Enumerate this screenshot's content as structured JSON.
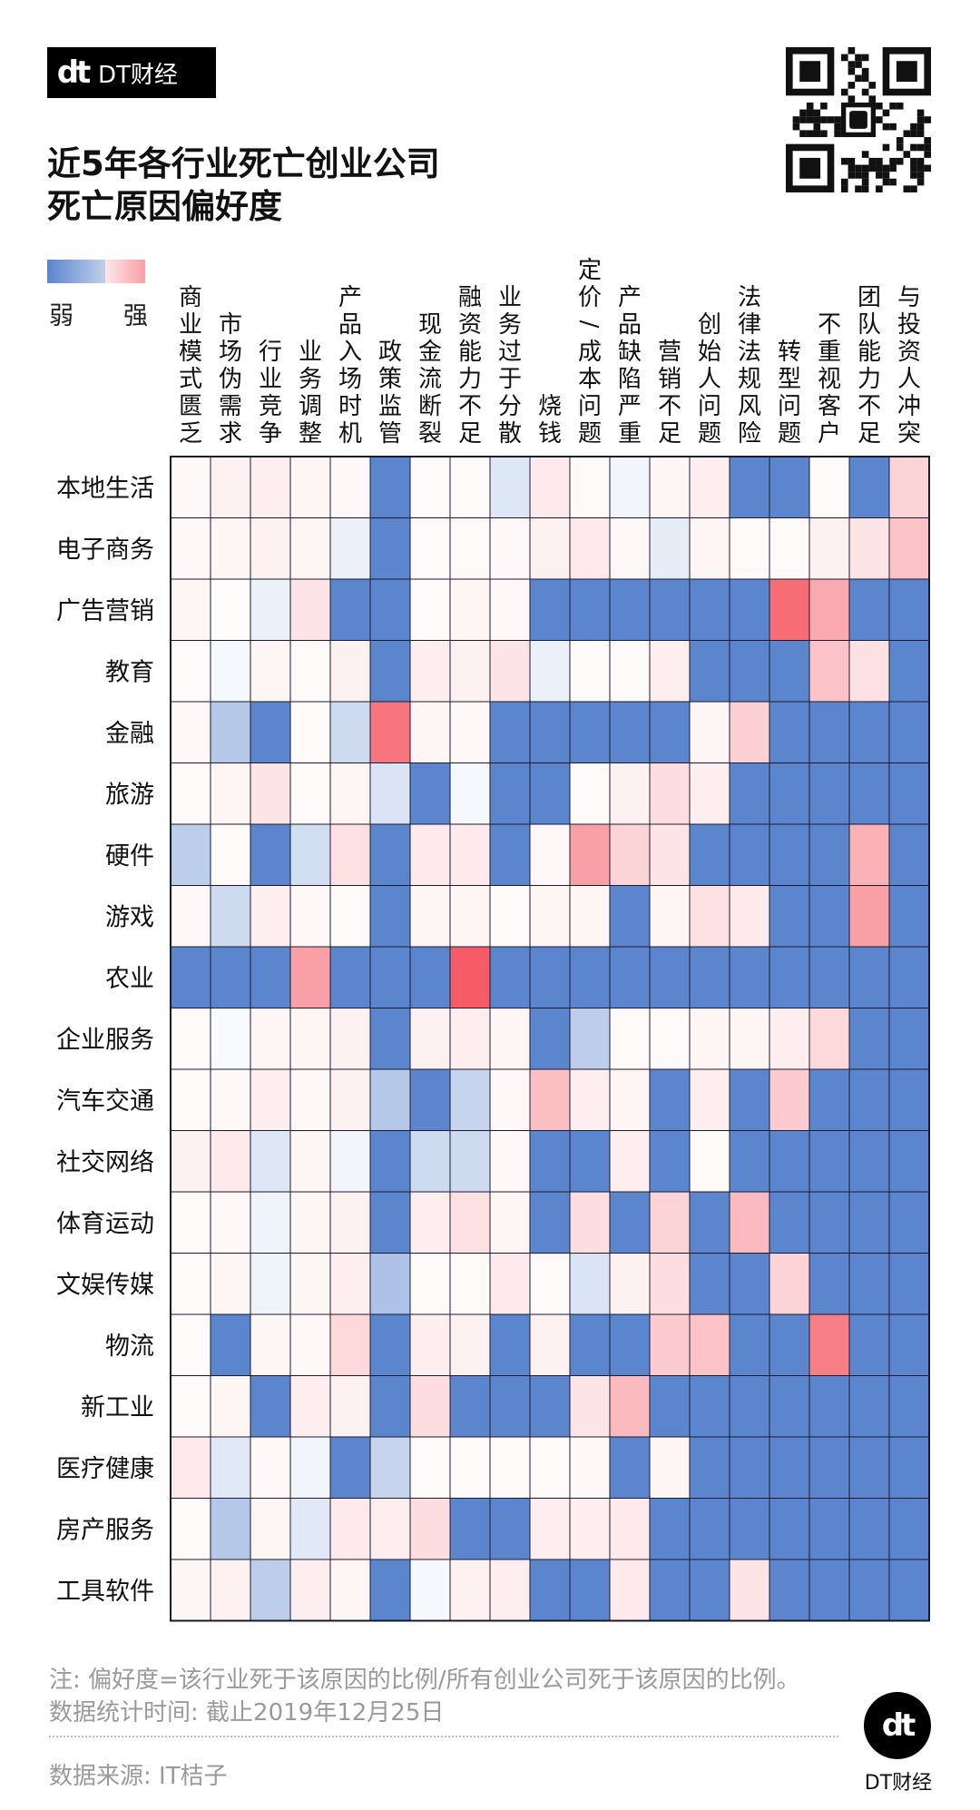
{
  "brand": {
    "logo_mark": "dt",
    "name": "DT财经"
  },
  "title": {
    "line1": "近5年各行业死亡创业公司",
    "line2": "死亡原因偏好度"
  },
  "legend": {
    "weak": "弱",
    "strong": "强"
  },
  "footer": {
    "note": "注: 偏好度=该行业死于该原因的比例/所有创业公司死于该原因的比例。",
    "time": "数据统计时间: 截止2019年12月25日",
    "source": "数据来源: IT桔子",
    "logo_mark": "dt",
    "logo_label": "DT财经"
  },
  "colors": {
    "weak": "#5b85cc",
    "neutral": "#ffffff",
    "strong": "#f4535e",
    "grid": "#1a1a2e"
  },
  "chart_data": {
    "type": "heatmap",
    "title": "近5年各行业死亡创业公司死亡原因偏好度",
    "columns": [
      "商业模式匮乏",
      "市场伪需求",
      "行业竞争",
      "业务调整",
      "产品入场时机",
      "政策监管",
      "现金流断裂",
      "融资能力不足",
      "业务过于分散",
      "烧钱",
      "定价/成本问题",
      "产品缺陷严重",
      "营销不足",
      "创始人问题",
      "法律法规风险",
      "转型问题",
      "不重视客户",
      "团队能力不足",
      "与投资人冲突"
    ],
    "rows": [
      "本地生活",
      "电子商务",
      "广告营销",
      "教育",
      "金融",
      "旅游",
      "硬件",
      "游戏",
      "农业",
      "企业服务",
      "汽车交通",
      "社交网络",
      "体育运动",
      "文娱传媒",
      "物流",
      "新工业",
      "医疗健康",
      "房产服务",
      "工具软件"
    ],
    "scale": "-1 = 最弱(蓝), 0 = 中性(白), 1 = 最强(红)",
    "values": [
      [
        0.04,
        0.08,
        0.1,
        0.06,
        0.04,
        -1,
        0.03,
        0.03,
        -0.2,
        0.12,
        0.03,
        -0.08,
        0.06,
        0.1,
        -1,
        -1,
        0.03,
        -1,
        0.25
      ],
      [
        0.04,
        0.06,
        0.08,
        0.06,
        -0.12,
        -1,
        0.03,
        0.03,
        0.04,
        0.08,
        0.12,
        0.04,
        -0.15,
        0.06,
        0.03,
        0.03,
        0.08,
        0.15,
        0.35
      ],
      [
        0.06,
        0.02,
        -0.12,
        0.15,
        -1,
        -1,
        0.03,
        0.06,
        0.04,
        -1,
        -1,
        -1,
        -1,
        -1,
        -1,
        0.85,
        0.5,
        -1,
        -1
      ],
      [
        0.03,
        -0.06,
        0.06,
        0.03,
        0.08,
        -1,
        0.1,
        0.08,
        0.15,
        -0.12,
        0.03,
        0.03,
        0.1,
        -1,
        -1,
        -1,
        0.35,
        0.18,
        -1
      ],
      [
        0.04,
        -0.45,
        -1,
        0.03,
        -0.3,
        0.8,
        0.06,
        0.04,
        -1,
        -1,
        -1,
        -1,
        -1,
        0.06,
        0.28,
        -1,
        -1,
        -1,
        -1
      ],
      [
        0.03,
        0.06,
        0.15,
        0.03,
        0.06,
        -0.22,
        -1,
        -0.06,
        -1,
        -1,
        0.03,
        0.08,
        0.2,
        0.1,
        -1,
        -1,
        -1,
        -1,
        -1
      ],
      [
        -0.4,
        0.03,
        -1,
        -0.28,
        0.18,
        -1,
        0.12,
        0.12,
        -1,
        0.04,
        0.55,
        0.25,
        0.15,
        -1,
        -1,
        -1,
        -1,
        0.45,
        -1
      ],
      [
        0.04,
        -0.3,
        0.1,
        0.04,
        0.03,
        -1,
        0.06,
        0.06,
        0.03,
        0.06,
        0.06,
        -1,
        0.06,
        0.18,
        0.12,
        -1,
        -1,
        0.55,
        -1
      ],
      [
        -1,
        -1,
        -1,
        0.55,
        -1,
        -1,
        -1,
        0.95,
        -1,
        -1,
        -1,
        -1,
        -1,
        -1,
        -1,
        -1,
        -1,
        -1,
        -1
      ],
      [
        0.03,
        -0.04,
        0.06,
        0.06,
        0.08,
        -1,
        0.08,
        0.1,
        0.06,
        -1,
        -0.4,
        0.03,
        0.03,
        0.06,
        0.06,
        0.1,
        0.22,
        -1,
        -1
      ],
      [
        0.03,
        0.04,
        0.1,
        0.04,
        0.08,
        -0.45,
        -1,
        -0.35,
        0.04,
        0.38,
        0.1,
        0.06,
        -1,
        0.1,
        -1,
        0.3,
        -1,
        -1,
        -1
      ],
      [
        0.08,
        0.12,
        -0.2,
        0.06,
        -0.08,
        -1,
        -0.3,
        -0.3,
        0.04,
        -1,
        -1,
        0.1,
        -1,
        0.03,
        -1,
        -1,
        -1,
        -1,
        -1
      ],
      [
        0.03,
        0.04,
        -0.1,
        0.06,
        0.08,
        -1,
        0.1,
        0.18,
        0.06,
        -1,
        0.2,
        -1,
        0.25,
        -1,
        0.4,
        -1,
        -1,
        -1,
        -1
      ],
      [
        0.03,
        0.06,
        -0.1,
        0.06,
        0.1,
        -0.5,
        0.03,
        0.03,
        0.12,
        0.03,
        -0.22,
        0.08,
        0.2,
        -1,
        -1,
        0.25,
        -1,
        -1,
        -1
      ],
      [
        0.03,
        -1,
        0.06,
        0.04,
        0.22,
        -1,
        0.1,
        0.08,
        -1,
        0.08,
        -1,
        -1,
        0.3,
        0.35,
        -1,
        -1,
        0.75,
        -1,
        -1
      ],
      [
        0.03,
        0.06,
        -1,
        0.1,
        0.08,
        -1,
        0.2,
        -1,
        -1,
        -1,
        0.15,
        0.4,
        -1,
        -1,
        -1,
        -1,
        -1,
        -1,
        -1
      ],
      [
        0.12,
        -0.18,
        0.04,
        -0.08,
        -1,
        -0.35,
        0.03,
        0.03,
        0.03,
        0.03,
        0.04,
        -1,
        0.06,
        -1,
        -1,
        -1,
        -1,
        -1,
        -1
      ],
      [
        0.03,
        -0.45,
        0.06,
        -0.18,
        0.12,
        0.1,
        0.2,
        -1,
        -1,
        0.1,
        0.1,
        0.12,
        -1,
        -1,
        -1,
        -1,
        -1,
        -1,
        -1
      ],
      [
        0.06,
        0.08,
        -0.4,
        0.1,
        0.06,
        -1,
        -0.06,
        0.08,
        0.1,
        -1,
        -1,
        0.12,
        -1,
        -1,
        0.15,
        -1,
        -1,
        -1,
        -1
      ]
    ]
  }
}
